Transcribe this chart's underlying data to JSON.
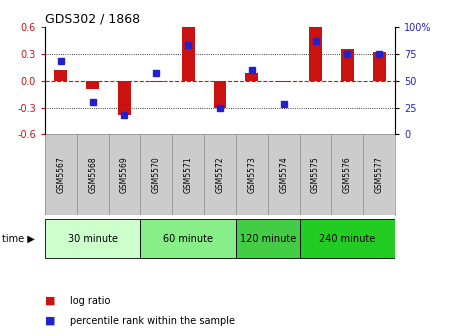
{
  "title": "GDS302 / 1868",
  "samples": [
    "GSM5567",
    "GSM5568",
    "GSM5569",
    "GSM5570",
    "GSM5571",
    "GSM5572",
    "GSM5573",
    "GSM5574",
    "GSM5575",
    "GSM5576",
    "GSM5577"
  ],
  "log_ratio": [
    0.12,
    -0.09,
    -0.38,
    -0.02,
    0.6,
    -0.3,
    0.08,
    -0.02,
    0.6,
    0.35,
    0.32
  ],
  "percentile": [
    68,
    30,
    18,
    57,
    83,
    25,
    60,
    28,
    87,
    75,
    75
  ],
  "ylim": [
    -0.6,
    0.6
  ],
  "yticks_left": [
    -0.6,
    -0.3,
    0.0,
    0.3,
    0.6
  ],
  "yticks_right": [
    0,
    25,
    50,
    75,
    100
  ],
  "bar_color": "#cc1111",
  "dot_color": "#2222cc",
  "zero_line_color": "#cc1111",
  "bg_color": "#ffffff",
  "label_bg": "#cccccc",
  "groups": [
    {
      "label": "30 minute",
      "start": 0,
      "end": 3,
      "color": "#ccffcc"
    },
    {
      "label": "60 minute",
      "start": 3,
      "end": 6,
      "color": "#88ee88"
    },
    {
      "label": "120 minute",
      "start": 6,
      "end": 8,
      "color": "#44cc44"
    },
    {
      "label": "240 minute",
      "start": 8,
      "end": 11,
      "color": "#22cc22"
    }
  ],
  "legend_bar_color": "#cc1111",
  "legend_dot_color": "#2222cc",
  "legend_bar_label": "log ratio",
  "legend_dot_label": "percentile rank within the sample",
  "dot_size": 5,
  "bar_width": 0.4
}
